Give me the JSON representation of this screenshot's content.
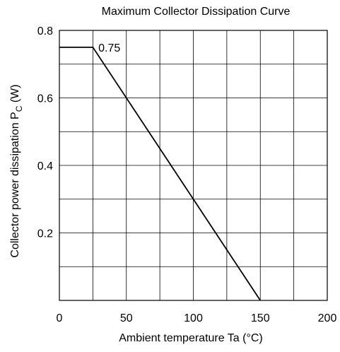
{
  "chart_data": {
    "type": "line",
    "title": "Maximum Collector Dissipation Curve",
    "xlabel": "Ambient temperature  Ta  (°C)",
    "ylabel_main": "Collector power dissipation  P",
    "ylabel_sub": "C",
    "ylabel_unit": "  (W)",
    "xlim": [
      0,
      200
    ],
    "ylim": [
      0,
      0.8
    ],
    "x_ticks": [
      0,
      50,
      100,
      150,
      200
    ],
    "x_tick_labels": [
      "0",
      "50",
      "100",
      "150",
      "200"
    ],
    "y_ticks": [
      0.2,
      0.4,
      0.6,
      0.8
    ],
    "y_tick_labels": [
      "0.2",
      "0.4",
      "0.6",
      "0.8"
    ],
    "grid": true,
    "grid_x_step": 25,
    "grid_y_step": 0.1,
    "series": [
      {
        "x": [
          0,
          25,
          150
        ],
        "y": [
          0.75,
          0.75,
          0
        ]
      }
    ],
    "annotations": [
      {
        "text": "0.75",
        "x": 27,
        "y": 0.75
      }
    ],
    "colors": {
      "line": "#000000",
      "grid": "#000000"
    }
  }
}
